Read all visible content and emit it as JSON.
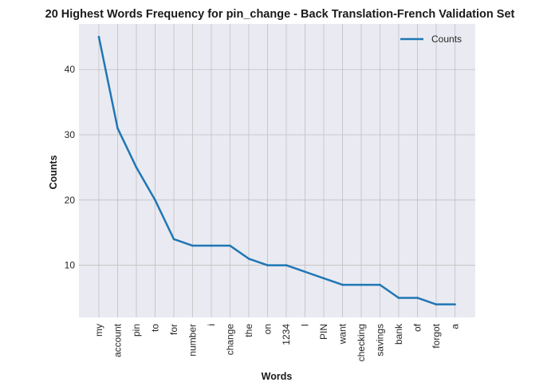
{
  "chart_data": {
    "type": "line",
    "title": "20 Highest Words Frequency for pin_change - Back Translation-French Validation Set",
    "xlabel": "Words",
    "ylabel": "Counts",
    "categories": [
      "my",
      "account",
      "pin",
      "to",
      "for",
      "number",
      "i",
      "change",
      "the",
      "on",
      "1234",
      "I",
      "PIN",
      "want",
      "checking",
      "savings",
      "bank",
      "of",
      "forgot",
      "a"
    ],
    "series": [
      {
        "name": "Counts",
        "values": [
          45,
          31,
          25,
          20,
          14,
          13,
          13,
          13,
          11,
          10,
          10,
          9,
          8,
          7,
          7,
          7,
          5,
          5,
          4,
          4
        ]
      }
    ],
    "yticks": [
      10,
      20,
      30,
      40
    ],
    "ylim": [
      2.0,
      47.0
    ],
    "grid": true,
    "legend_position": "top-right",
    "colors": {
      "line": "#1f77b4",
      "plot_background": "#eaeaf2",
      "grid": "#c0c0c0"
    }
  }
}
